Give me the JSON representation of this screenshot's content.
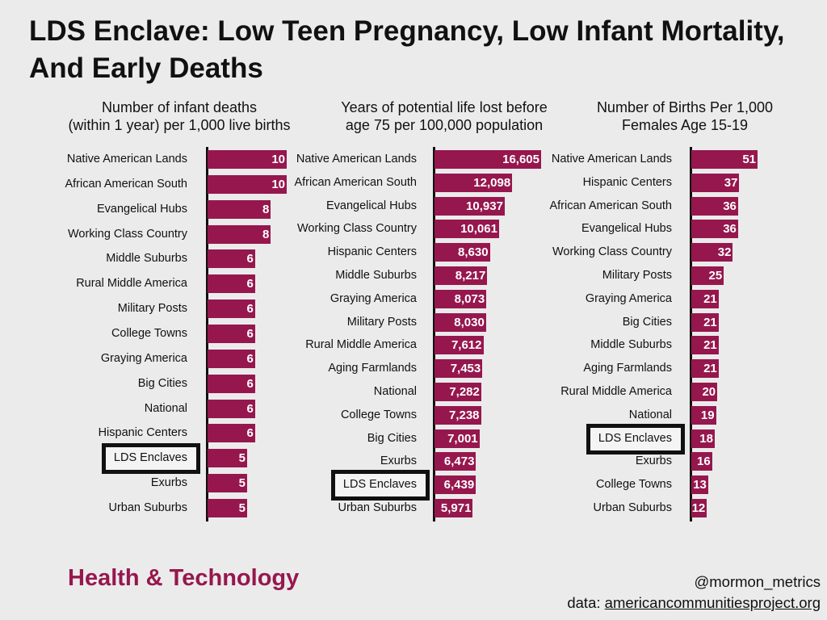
{
  "title": "LDS Enclave: Low Teen Pregnancy, Low Infant Mortality, And Early Deaths",
  "highlight": "LDS Enclaves",
  "colors": {
    "bar": "#96174e",
    "background": "#ebebeb"
  },
  "chart_data": [
    {
      "type": "bar",
      "orientation": "horizontal",
      "title": "Number of infant deaths (within 1 year) per 1,000 live births",
      "title_lines": [
        "Number of infant deaths",
        "(within 1 year) per 1,000 live births"
      ],
      "categories": [
        "Native American Lands",
        "African American South",
        "Evangelical Hubs",
        "Working Class Country",
        "Middle Suburbs",
        "Rural Middle America",
        "Military Posts",
        "College Towns",
        "Graying America",
        "Big Cities",
        "National",
        "Hispanic Centers",
        "LDS Enclaves",
        "Exurbs",
        "Urban Suburbs"
      ],
      "values": [
        10,
        10,
        8,
        8,
        6,
        6,
        6,
        6,
        6,
        6,
        6,
        6,
        5,
        5,
        5
      ],
      "labels": [
        "10",
        "10",
        "8",
        "8",
        "6",
        "6",
        "6",
        "6",
        "6",
        "6",
        "6",
        "6",
        "5",
        "5",
        "5"
      ],
      "xlim": [
        0,
        10
      ]
    },
    {
      "type": "bar",
      "orientation": "horizontal",
      "title": "Years of potential life lost before age 75 per 100,000 population",
      "title_lines": [
        "Years of potential life lost before",
        "age 75 per 100,000 population"
      ],
      "categories": [
        "Native American Lands",
        "African American South",
        "Evangelical Hubs",
        "Working Class Country",
        "Hispanic Centers",
        "Middle Suburbs",
        "Graying America",
        "Military Posts",
        "Rural Middle America",
        "Aging Farmlands",
        "National",
        "College Towns",
        "Big Cities",
        "Exurbs",
        "LDS Enclaves",
        "Urban Suburbs"
      ],
      "values": [
        16605,
        12098,
        10937,
        10061,
        8630,
        8217,
        8073,
        8030,
        7612,
        7453,
        7282,
        7238,
        7001,
        6473,
        6439,
        5971
      ],
      "labels": [
        "16,605",
        "12,098",
        "10,937",
        "10,061",
        "8,630",
        "8,217",
        "8,073",
        "8,030",
        "7,612",
        "7,453",
        "7,282",
        "7,238",
        "7,001",
        "6,473",
        "6,439",
        "5,971"
      ],
      "xlim": [
        0,
        16605
      ]
    },
    {
      "type": "bar",
      "orientation": "horizontal",
      "title": "Number of Births Per 1,000 Females Age 15-19",
      "title_lines": [
        "Number of Births Per 1,000",
        "Females Age 15-19"
      ],
      "categories": [
        "Native American Lands",
        "Hispanic Centers",
        "African American South",
        "Evangelical Hubs",
        "Working Class Country",
        "Military Posts",
        "Graying America",
        "Big Cities",
        "Middle Suburbs",
        "Aging Farmlands",
        "Rural Middle America",
        "National",
        "LDS Enclaves",
        "Exurbs",
        "College Towns",
        "Urban Suburbs"
      ],
      "values": [
        51,
        37,
        36,
        36,
        32,
        25,
        21,
        21,
        21,
        21,
        20,
        19,
        18,
        16,
        13,
        12
      ],
      "labels": [
        "51",
        "37",
        "36",
        "36",
        "32",
        "25",
        "21",
        "21",
        "21",
        "21",
        "20",
        "19",
        "18",
        "16",
        "13",
        "12"
      ],
      "xlim": [
        0,
        51
      ]
    }
  ],
  "footer": {
    "section": "Health & Technology",
    "handle": "@mormon_metrics",
    "source_prefix": "data:",
    "source_link": "americancommunitiesproject.org"
  }
}
